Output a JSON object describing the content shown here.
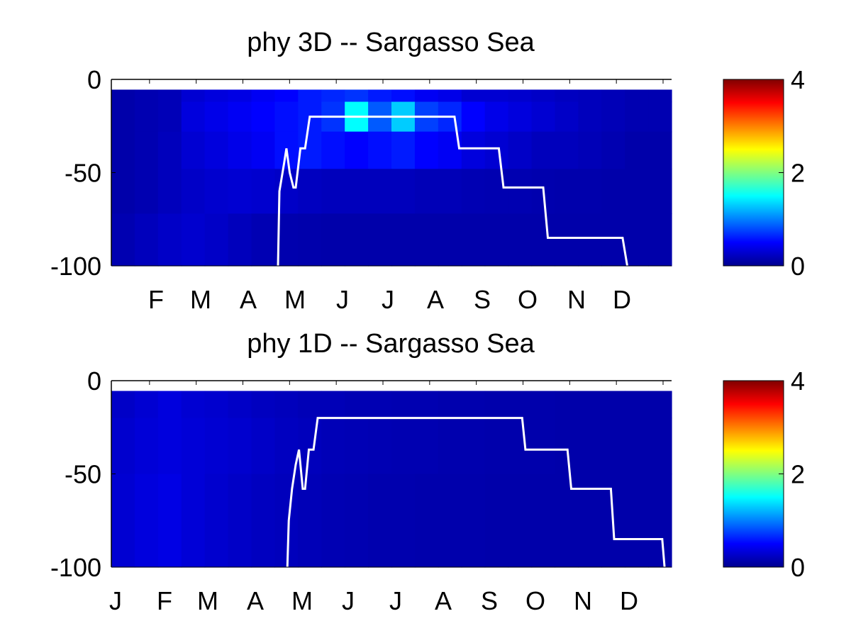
{
  "colors": {
    "background": "#ffffff",
    "mld_line": "#ffffff",
    "axis": "#000000",
    "colormap": [
      "#00008f",
      "#0000ff",
      "#0080ff",
      "#00ffff",
      "#80ff80",
      "#ffff00",
      "#ff8000",
      "#ff0000",
      "#800000"
    ]
  },
  "chart_data": [
    {
      "type": "heatmap",
      "title": "phy 3D   -- Sargasso Sea",
      "xlabel": "",
      "ylabel": "",
      "x_tick_labels": [
        "",
        "F",
        "M",
        "A",
        "M",
        "J",
        "J",
        "A",
        "S",
        "O",
        "N",
        "D"
      ],
      "y_ticks": [
        0,
        -50,
        -100
      ],
      "ylim": [
        -100,
        0
      ],
      "xlim_months": [
        0,
        12
      ],
      "colorbar": {
        "range": [
          0,
          4
        ],
        "ticks": [
          0,
          2,
          4
        ],
        "colormap": "jet"
      },
      "depth_bands": [
        {
          "top": -5.5,
          "bottom": -12,
          "values": [
            0.12,
            0.15,
            0.18,
            0.3,
            0.35,
            0.38,
            0.45,
            0.5,
            0.6,
            0.65,
            0.7,
            0.6,
            0.55,
            0.45,
            0.4,
            0.3,
            0.3,
            0.28,
            0.25,
            0.22,
            0.2,
            0.18,
            0.15,
            0.15
          ]
        },
        {
          "top": -12,
          "bottom": -28,
          "values": [
            0.12,
            0.15,
            0.18,
            0.35,
            0.4,
            0.45,
            0.5,
            0.55,
            0.6,
            0.7,
            1.5,
            0.85,
            1.3,
            0.75,
            0.65,
            0.5,
            0.4,
            0.35,
            0.3,
            0.25,
            0.2,
            0.18,
            0.15,
            0.15
          ]
        },
        {
          "top": -28,
          "bottom": -48,
          "values": [
            0.12,
            0.15,
            0.2,
            0.3,
            0.35,
            0.4,
            0.45,
            0.55,
            0.6,
            0.55,
            0.5,
            0.55,
            0.6,
            0.5,
            0.45,
            0.35,
            0.3,
            0.25,
            0.2,
            0.2,
            0.18,
            0.15,
            0.12,
            0.12
          ]
        },
        {
          "top": -48,
          "bottom": -72,
          "values": [
            0.12,
            0.15,
            0.2,
            0.25,
            0.28,
            0.3,
            0.28,
            0.25,
            0.22,
            0.2,
            0.2,
            0.2,
            0.2,
            0.18,
            0.18,
            0.16,
            0.15,
            0.15,
            0.14,
            0.13,
            0.13,
            0.12,
            0.12,
            0.12
          ]
        },
        {
          "top": -72,
          "bottom": -100,
          "values": [
            0.15,
            0.2,
            0.25,
            0.28,
            0.25,
            0.2,
            0.16,
            0.14,
            0.13,
            0.12,
            0.12,
            0.12,
            0.12,
            0.12,
            0.12,
            0.12,
            0.12,
            0.12,
            0.12,
            0.12,
            0.12,
            0.12,
            0.12,
            0.12
          ]
        }
      ],
      "mixed_layer_depth": {
        "x": [
          3.57,
          3.6,
          3.7,
          3.75,
          3.82,
          3.9,
          3.95,
          4.05,
          4.15,
          4.25,
          4.35,
          7.35,
          7.45,
          8.3,
          8.4,
          9.25,
          9.35,
          10.95,
          11.05
        ],
        "y": [
          -100,
          -60,
          -45,
          -37,
          -50,
          -58,
          -58,
          -37,
          -37,
          -20,
          -20,
          -20,
          -37,
          -37,
          -58,
          -58,
          -85,
          -85,
          -100
        ]
      }
    },
    {
      "type": "heatmap",
      "title": "phy 1D   -- Sargasso Sea",
      "xlabel": "",
      "ylabel": "",
      "x_tick_labels": [
        "J",
        "F",
        "M",
        "A",
        "M",
        "J",
        "J",
        "A",
        "S",
        "O",
        "N",
        "D"
      ],
      "y_ticks": [
        0,
        -50,
        -100
      ],
      "ylim": [
        -100,
        0
      ],
      "xlim_months": [
        0,
        12
      ],
      "colorbar": {
        "range": [
          0,
          4
        ],
        "ticks": [
          0,
          2,
          4
        ],
        "colormap": "jet"
      },
      "depth_bands": [
        {
          "top": -5.5,
          "bottom": -20,
          "values": [
            0.25,
            0.3,
            0.35,
            0.3,
            0.28,
            0.25,
            0.22,
            0.2,
            0.18,
            0.18,
            0.16,
            0.16,
            0.15,
            0.15,
            0.14,
            0.14,
            0.13,
            0.13,
            0.13,
            0.12,
            0.12,
            0.12,
            0.12,
            0.12
          ]
        },
        {
          "top": -20,
          "bottom": -50,
          "values": [
            0.28,
            0.32,
            0.35,
            0.32,
            0.3,
            0.28,
            0.25,
            0.22,
            0.2,
            0.18,
            0.17,
            0.16,
            0.15,
            0.15,
            0.14,
            0.14,
            0.13,
            0.13,
            0.13,
            0.12,
            0.12,
            0.12,
            0.12,
            0.12
          ]
        },
        {
          "top": -50,
          "bottom": -100,
          "values": [
            0.3,
            0.35,
            0.38,
            0.32,
            0.28,
            0.25,
            0.22,
            0.2,
            0.18,
            0.16,
            0.15,
            0.14,
            0.14,
            0.13,
            0.13,
            0.13,
            0.12,
            0.12,
            0.12,
            0.12,
            0.12,
            0.12,
            0.12,
            0.12
          ]
        }
      ],
      "mixed_layer_depth": {
        "x": [
          3.77,
          3.8,
          3.87,
          3.95,
          4.02,
          4.1,
          4.15,
          4.23,
          4.33,
          4.42,
          4.5,
          8.8,
          8.87,
          9.77,
          9.85,
          10.7,
          10.77,
          11.8,
          11.85
        ],
        "y": [
          -100,
          -75,
          -58,
          -45,
          -37,
          -58,
          -58,
          -37,
          -37,
          -20,
          -20,
          -20,
          -37,
          -37,
          -58,
          -58,
          -85,
          -85,
          -100
        ]
      }
    }
  ]
}
